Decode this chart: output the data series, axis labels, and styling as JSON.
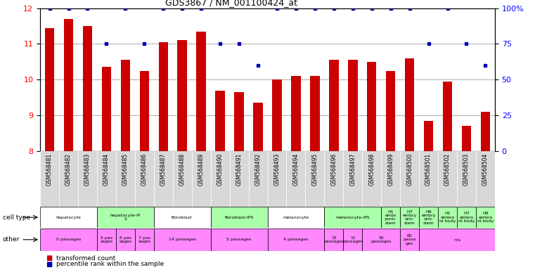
{
  "title": "GDS3867 / NM_001100424_at",
  "samples": [
    "GSM568481",
    "GSM568482",
    "GSM568483",
    "GSM568484",
    "GSM568485",
    "GSM568486",
    "GSM568487",
    "GSM568488",
    "GSM568489",
    "GSM568490",
    "GSM568491",
    "GSM568492",
    "GSM568493",
    "GSM568494",
    "GSM568495",
    "GSM568496",
    "GSM568497",
    "GSM568498",
    "GSM568499",
    "GSM568500",
    "GSM568501",
    "GSM568502",
    "GSM568503",
    "GSM568504"
  ],
  "transformed_count": [
    11.45,
    11.7,
    11.5,
    10.35,
    10.55,
    10.25,
    11.05,
    11.1,
    11.35,
    9.7,
    9.65,
    9.35,
    10.0,
    10.1,
    10.1,
    10.55,
    10.55,
    10.5,
    10.25,
    10.6,
    8.85,
    9.95,
    8.7,
    9.1
  ],
  "percentile_rank": [
    100,
    100,
    100,
    75,
    100,
    75,
    100,
    100,
    100,
    75,
    75,
    60,
    100,
    100,
    100,
    100,
    100,
    100,
    100,
    100,
    75,
    100,
    75,
    60
  ],
  "ylim_left": [
    8,
    12
  ],
  "ylim_right": [
    0,
    100
  ],
  "yticks_left": [
    8,
    9,
    10,
    11,
    12
  ],
  "yticks_right": [
    0,
    25,
    50,
    75,
    100
  ],
  "bar_color": "#cc0000",
  "dot_color": "#0000bb",
  "bg_color": "#ffffff",
  "label_bg_color": "#d8d8d8",
  "cell_type_groups": [
    {
      "label": "hepatocyte",
      "start": 0,
      "end": 2,
      "color": "#ffffff"
    },
    {
      "label": "hepatocyte-iP\nS",
      "start": 3,
      "end": 5,
      "color": "#aaffaa"
    },
    {
      "label": "fibroblast",
      "start": 6,
      "end": 8,
      "color": "#ffffff"
    },
    {
      "label": "fibroblast-IPS",
      "start": 9,
      "end": 11,
      "color": "#aaffaa"
    },
    {
      "label": "melanocyte",
      "start": 12,
      "end": 14,
      "color": "#ffffff"
    },
    {
      "label": "melanocyte-iPS",
      "start": 15,
      "end": 17,
      "color": "#aaffaa"
    },
    {
      "label": "H1\nembr\nyonic\nstem",
      "start": 18,
      "end": 18,
      "color": "#aaffaa"
    },
    {
      "label": "H7\nembry\nonic\nstem",
      "start": 19,
      "end": 19,
      "color": "#aaffaa"
    },
    {
      "label": "H9\nembry\nonic\nstem",
      "start": 20,
      "end": 20,
      "color": "#aaffaa"
    },
    {
      "label": "H1\nembro\nid body",
      "start": 21,
      "end": 21,
      "color": "#aaffaa"
    },
    {
      "label": "H7\nembro\nid body",
      "start": 22,
      "end": 22,
      "color": "#aaffaa"
    },
    {
      "label": "H9\nembro\nid body",
      "start": 23,
      "end": 23,
      "color": "#aaffaa"
    }
  ],
  "other_groups": [
    {
      "label": "0 passages",
      "start": 0,
      "end": 2,
      "color": "#ff88ff"
    },
    {
      "label": "5 pas\nsages",
      "start": 3,
      "end": 3,
      "color": "#ff88ff"
    },
    {
      "label": "6 pas\nsages",
      "start": 4,
      "end": 4,
      "color": "#ff88ff"
    },
    {
      "label": "7 pas\nsages",
      "start": 5,
      "end": 5,
      "color": "#ff88ff"
    },
    {
      "label": "14 passages",
      "start": 6,
      "end": 8,
      "color": "#ff88ff"
    },
    {
      "label": "5 passages",
      "start": 9,
      "end": 11,
      "color": "#ff88ff"
    },
    {
      "label": "4 passages",
      "start": 12,
      "end": 14,
      "color": "#ff88ff"
    },
    {
      "label": "15\npassages",
      "start": 15,
      "end": 15,
      "color": "#ff88ff"
    },
    {
      "label": "11\npassages",
      "start": 16,
      "end": 16,
      "color": "#ff88ff"
    },
    {
      "label": "50\npassages",
      "start": 17,
      "end": 18,
      "color": "#ff88ff"
    },
    {
      "label": "60\npassa\nges",
      "start": 19,
      "end": 19,
      "color": "#ff88ff"
    },
    {
      "label": "n/a",
      "start": 20,
      "end": 23,
      "color": "#ff88ff"
    }
  ]
}
